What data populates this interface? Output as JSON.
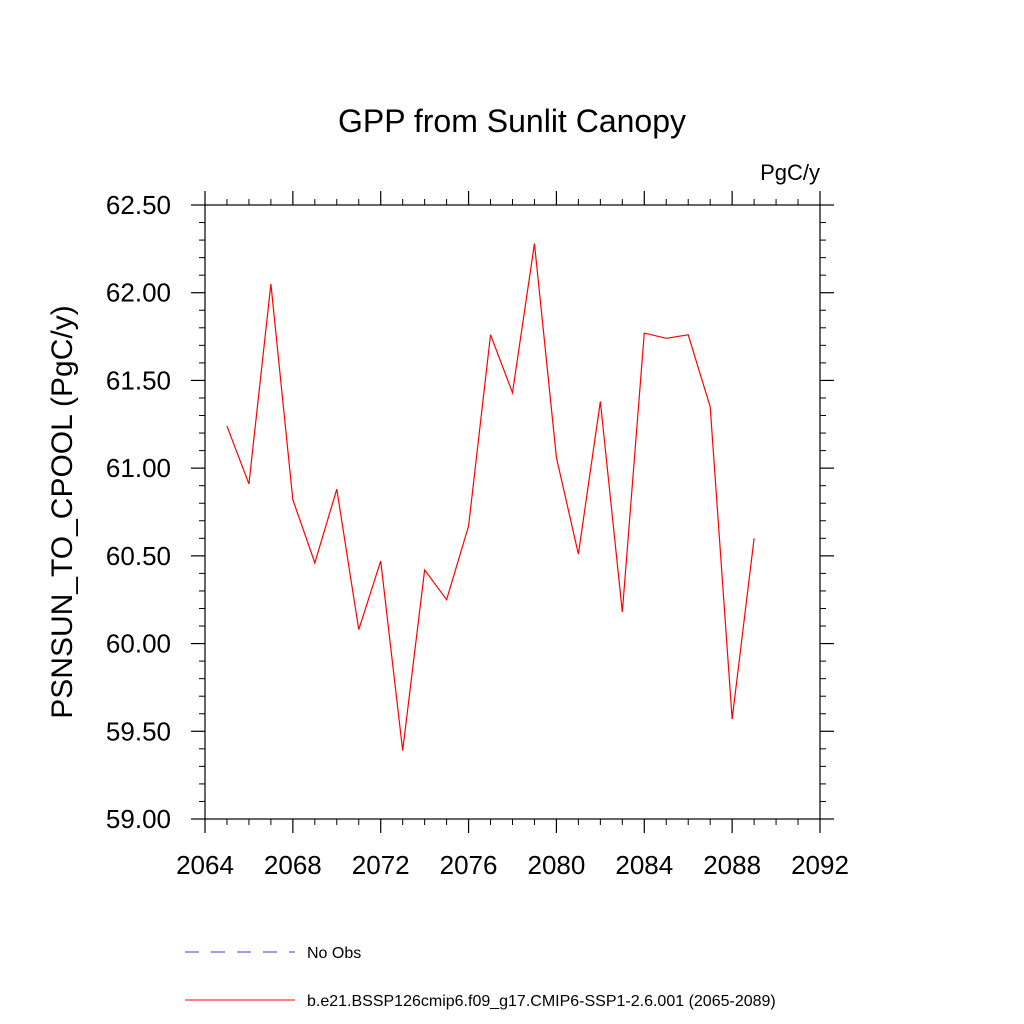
{
  "chart_data": {
    "type": "line",
    "title": "GPP from Sunlit Canopy",
    "units": "PgC/y",
    "xlabel": "",
    "ylabel": "PSNSUN_TO_CPOOL  (PgC/y)",
    "xlim": [
      2064,
      2092
    ],
    "ylim": [
      59.0,
      62.5
    ],
    "xticks": [
      "2064",
      "2068",
      "2072",
      "2076",
      "2080",
      "2084",
      "2088",
      "2092"
    ],
    "yticks": [
      "59.00",
      "59.50",
      "60.00",
      "60.50",
      "61.00",
      "61.50",
      "62.00",
      "62.50"
    ],
    "grid": false,
    "legend_position": "bottom",
    "series": [
      {
        "name": "b.e21.BSSP126cmip6.f09_g17.CMIP6-SSP1-2.6.001 (2065-2089)",
        "color": "#ff0000",
        "style": "solid",
        "x": [
          2065,
          2066,
          2067,
          2068,
          2069,
          2070,
          2071,
          2072,
          2073,
          2074,
          2075,
          2076,
          2077,
          2078,
          2079,
          2080,
          2081,
          2082,
          2083,
          2084,
          2085,
          2086,
          2087,
          2088,
          2089
        ],
        "values": [
          61.24,
          60.91,
          62.05,
          60.82,
          60.46,
          60.88,
          60.08,
          60.47,
          59.39,
          60.42,
          60.25,
          60.67,
          61.76,
          61.43,
          62.28,
          61.06,
          60.51,
          61.38,
          60.18,
          61.77,
          61.74,
          61.76,
          61.35,
          59.57,
          60.6
        ]
      },
      {
        "name": "No Obs",
        "color": "#3b3bd6",
        "style": "dashed",
        "x": [],
        "values": []
      }
    ]
  }
}
